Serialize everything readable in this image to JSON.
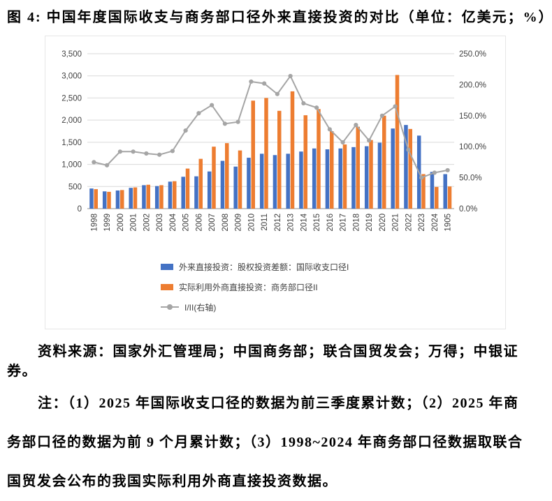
{
  "page": {
    "title": "图 4: 中国年度国际收支与商务部口径外来直接投资的对比（单位：亿美元；%）",
    "source": "资料来源：国家外汇管理局；中国商务部；联合国贸发会；万得；中银证券。",
    "notes": {
      "line1": "注：（1）2025 年国际收支口径的数据为前三季度累计数；（2）2025 年商",
      "line2": "务部口径的数据为前 9 个月累计数；（3）1998~2024 年商务部口径数据取联合",
      "line3": "国贸发会公布的我国实际利用外商直接投资数据。"
    }
  },
  "chart_data": {
    "type": "bar",
    "subtype": "grouped bars with line on secondary axis",
    "categories": [
      "1998",
      "1999",
      "2000",
      "2001",
      "2002",
      "2003",
      "2004",
      "2005",
      "2006",
      "2007",
      "2008",
      "2009",
      "2010",
      "2011",
      "2012",
      "2013",
      "2014",
      "2015",
      "2016",
      "2017",
      "2018",
      "2019",
      "2020",
      "2021",
      "2022",
      "2023",
      "2024",
      "1905"
    ],
    "series": [
      {
        "name": "外来直接投资：股权投资差额：国际收支口径I",
        "type": "bar",
        "axis": "left",
        "color": "#4472C4",
        "values": [
          455,
          390,
          410,
          470,
          530,
          510,
          610,
          720,
          730,
          840,
          1080,
          950,
          1150,
          1240,
          1210,
          1240,
          1290,
          1360,
          1340,
          1360,
          1390,
          1410,
          1490,
          1810,
          1890,
          1650,
          830,
          780
        ]
      },
      {
        "name": "实际利用外商直接投资：商务部口径II",
        "type": "bar",
        "axis": "left",
        "color": "#ED7D31",
        "values": [
          440,
          380,
          420,
          480,
          540,
          530,
          620,
          905,
          1125,
          1400,
          1480,
          1315,
          2440,
          2500,
          2210,
          2650,
          2110,
          2250,
          1750,
          1450,
          1850,
          1550,
          2100,
          3020,
          1800,
          780,
          490,
          500
        ]
      },
      {
        "name": "I/II(右轴)",
        "type": "line",
        "axis": "right",
        "color": "#A5A5A5",
        "values": [
          75,
          70,
          92,
          92,
          89,
          87,
          93,
          126,
          154,
          167,
          137,
          140,
          205,
          202,
          185,
          214,
          170,
          163,
          128,
          107,
          135,
          110,
          150,
          165,
          95,
          50,
          58,
          62
        ]
      }
    ],
    "left_axis": {
      "min": 0,
      "max": 3500,
      "step": 500,
      "tick_labels": [
        "0",
        "500",
        "1,000",
        "1,500",
        "2,000",
        "2,500",
        "3,000",
        "3,500"
      ]
    },
    "right_axis": {
      "min": 0,
      "max": 250,
      "step": 50,
      "tick_labels": [
        "0.0%",
        "50.0%",
        "100.0%",
        "150.0%",
        "200.0%",
        "250.0%"
      ]
    },
    "grid": true,
    "legend_position": "bottom-left",
    "x_labels_rotated": true
  }
}
